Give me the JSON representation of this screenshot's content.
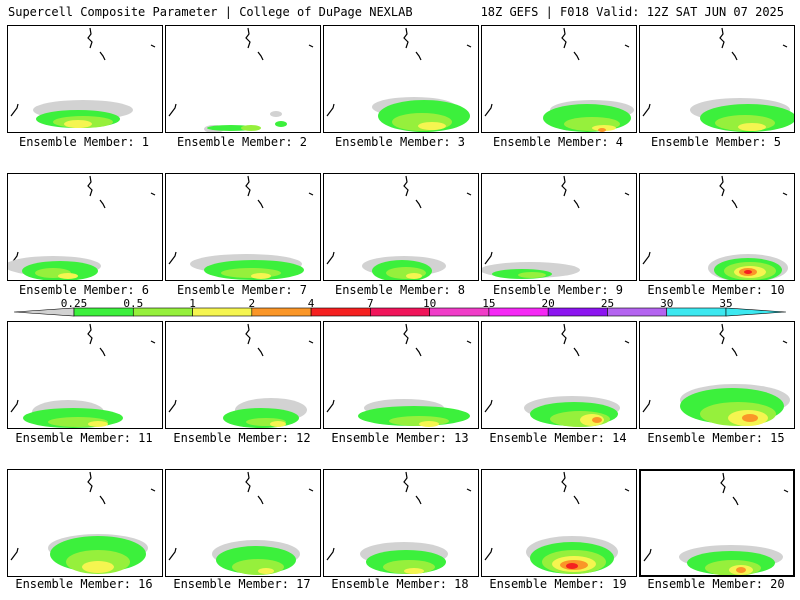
{
  "header": {
    "title": "Supercell Composite Parameter | College of DuPage NEXLAB",
    "run_info": "18Z GEFS | F018 Valid: 12Z SAT JUN 07 2025"
  },
  "members": [
    "Ensemble Member: 1",
    "Ensemble Member: 2",
    "Ensemble Member: 3",
    "Ensemble Member: 4",
    "Ensemble Member: 5",
    "Ensemble Member: 6",
    "Ensemble Member: 7",
    "Ensemble Member: 8",
    "Ensemble Member: 9",
    "Ensemble Member: 10",
    "Ensemble Member: 11",
    "Ensemble Member: 12",
    "Ensemble Member: 13",
    "Ensemble Member: 14",
    "Ensemble Member: 15",
    "Ensemble Member: 16",
    "Ensemble Member: 17",
    "Ensemble Member: 18",
    "Ensemble Member: 19",
    "Ensemble Member: 20"
  ],
  "selected_member": 20,
  "colorbar": {
    "ticks": [
      "0.25",
      "0.5",
      "1",
      "2",
      "4",
      "7",
      "10",
      "15",
      "20",
      "25",
      "30",
      "35"
    ],
    "colors": [
      "#d2d2d2",
      "#3cf03c",
      "#96f03c",
      "#f5f550",
      "#fa9628",
      "#f52020",
      "#f0145a",
      "#f03cc8",
      "#f528f5",
      "#8c14f0",
      "#b464f0",
      "#3ce8f0"
    ]
  },
  "map_colors": {
    "land": "#ffffff",
    "coast": "#000000"
  }
}
